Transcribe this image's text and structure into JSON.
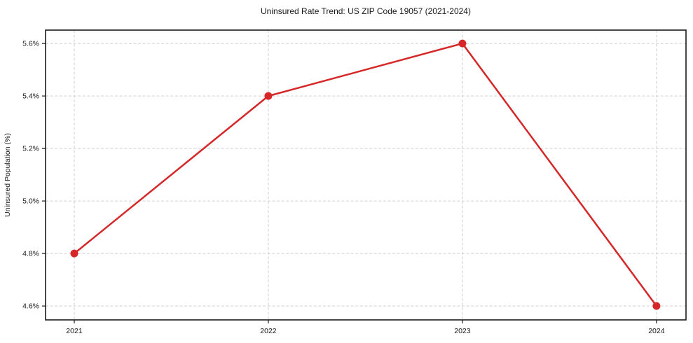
{
  "chart_data": {
    "type": "line",
    "title": "Uninsured Rate Trend: US ZIP Code 19057 (2021-2024)",
    "xlabel": "",
    "ylabel": "Uninsured Population (%)",
    "x": [
      2021,
      2022,
      2023,
      2024
    ],
    "x_tick_labels": [
      "2021",
      "2022",
      "2023",
      "2024"
    ],
    "y_ticks": [
      4.6,
      4.8,
      5.0,
      5.2,
      5.4,
      5.6
    ],
    "y_tick_labels": [
      "4.6%",
      "4.8%",
      "5.0%",
      "5.2%",
      "5.4%",
      "5.6%"
    ],
    "series": [
      {
        "name": "Uninsured Population (%)",
        "values": [
          4.8,
          5.4,
          5.6,
          4.6
        ]
      }
    ],
    "xlim": [
      2020.852,
      2024.152
    ],
    "ylim": [
      4.547,
      5.651
    ],
    "grid": true,
    "legend_position": "none",
    "marker": "circle",
    "colors": {
      "line": "#d62728",
      "marker": "#d62728",
      "grid": "#cfcfcf",
      "axis": "#1a1a1a",
      "text": "#1a1a1a",
      "background": "#ffffff"
    }
  }
}
